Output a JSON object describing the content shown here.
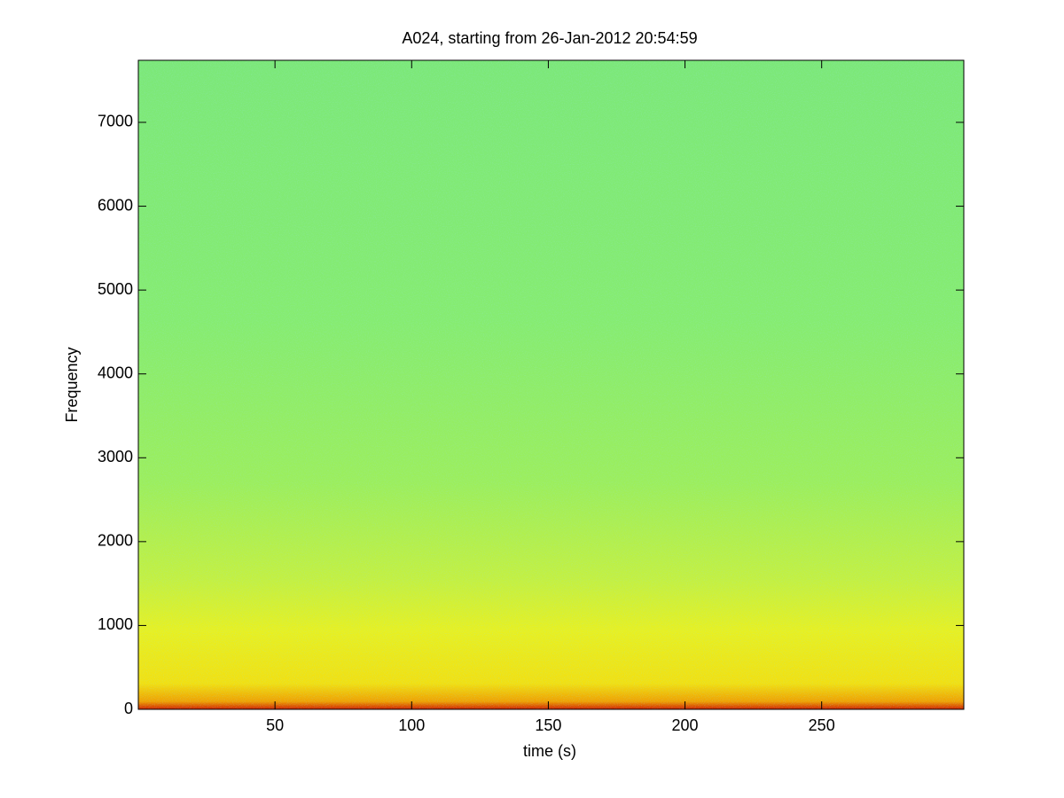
{
  "chart_data": {
    "type": "spectrogram",
    "title": "A024, starting from 26-Jan-2012 20:54:59",
    "x_label": "time (s)",
    "y_label": "Frequency",
    "xlim": [
      0,
      302
    ],
    "xticks": [
      50,
      100,
      150,
      200,
      250
    ],
    "ylim": [
      0,
      7740
    ],
    "yticks": [
      0,
      1000,
      2000,
      3000,
      4000,
      5000,
      6000,
      7000
    ],
    "grid": false
  }
}
